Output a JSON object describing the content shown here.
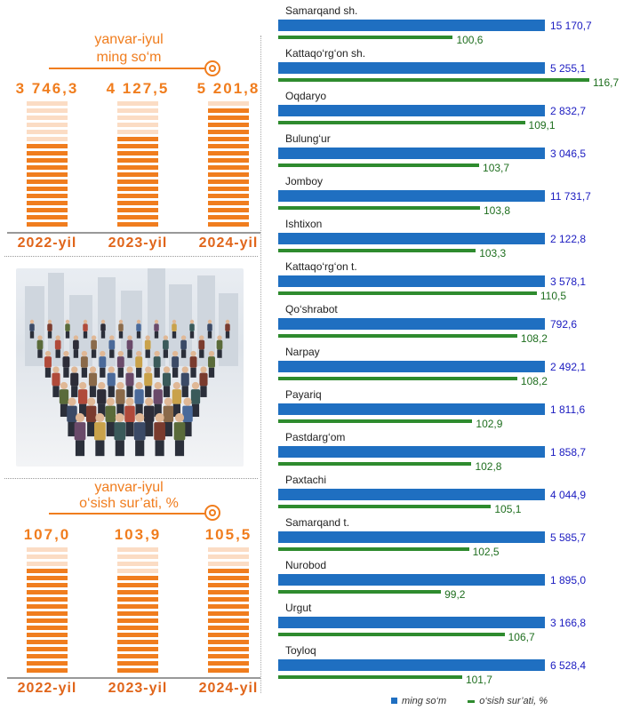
{
  "top_panel": {
    "title_line1": "yanvar-iyul",
    "title_line2": "ming so‘m",
    "columns": [
      {
        "value": 3746.3,
        "label": "3 746,3",
        "year": "2022-yil"
      },
      {
        "value": 4127.5,
        "label": "4 127,5",
        "year": "2023-yil"
      },
      {
        "value": 5201.8,
        "label": "5 201,8",
        "year": "2024-yil"
      }
    ],
    "scale_max": 5600
  },
  "bottom_panel": {
    "title_line1": "yanvar-iyul",
    "title_line2": "o‘sish sur’ati, %",
    "columns": [
      {
        "value": 107.0,
        "label": "107,0",
        "year": "2022-yil"
      },
      {
        "value": 103.9,
        "label": "103,9",
        "year": "2023-yil"
      },
      {
        "value": 105.5,
        "label": "105,5",
        "year": "2024-yil"
      }
    ],
    "scale_max": 130
  },
  "colors": {
    "orange_dark": "#F07D1E",
    "orange_light": "#FBDCC4",
    "blue": "#1F6FC1",
    "green": "#2E8B2E"
  },
  "chart_data": {
    "type": "bar",
    "categories": [
      "Samarqand sh.",
      "Kattaqo‘rg‘on sh.",
      "Oqdaryo",
      "Bulung‘ur",
      "Jomboy",
      "Ishtixon",
      "Kattaqo‘rg‘on t.",
      "Qo‘shrabot",
      "Narpay",
      "Payariq",
      "Pastdarg‘om",
      "Paxtachi",
      "Samarqand t.",
      "Nurobod",
      "Urgut",
      "Toyloq"
    ],
    "series": [
      {
        "name": "ming so‘m",
        "values": [
          15170.7,
          5255.1,
          2832.7,
          3046.5,
          11731.7,
          2122.8,
          3578.1,
          792.6,
          2492.1,
          1811.6,
          1858.7,
          4044.9,
          5585.7,
          1895.0,
          3166.8,
          6528.4
        ],
        "labels": [
          "15 170,7",
          "5 255,1",
          "2 832,7",
          "3 046,5",
          "11 731,7",
          "2 122,8",
          "3 578,1",
          "792,6",
          "2 492,1",
          "1 811,6",
          "1 858,7",
          "4 044,9",
          "5 585,7",
          "1 895,0",
          "3 166,8",
          "6 528,4"
        ]
      },
      {
        "name": "o‘sish sur’ati, %",
        "values": [
          100.6,
          116.7,
          109.1,
          103.7,
          103.8,
          103.3,
          110.5,
          108.2,
          108.2,
          102.9,
          102.8,
          105.1,
          102.5,
          99.2,
          106.7,
          101.7
        ],
        "labels": [
          "100,6",
          "116,7",
          "109,1",
          "103,7",
          "103,8",
          "103,3",
          "110,5",
          "108,2",
          "108,2",
          "102,9",
          "102,8",
          "105,1",
          "102,5",
          "99,2",
          "106,7",
          "101,7"
        ]
      }
    ],
    "legend": [
      "ming so‘m",
      "o‘sish sur’ati, %"
    ],
    "legend_position": "bottom"
  }
}
